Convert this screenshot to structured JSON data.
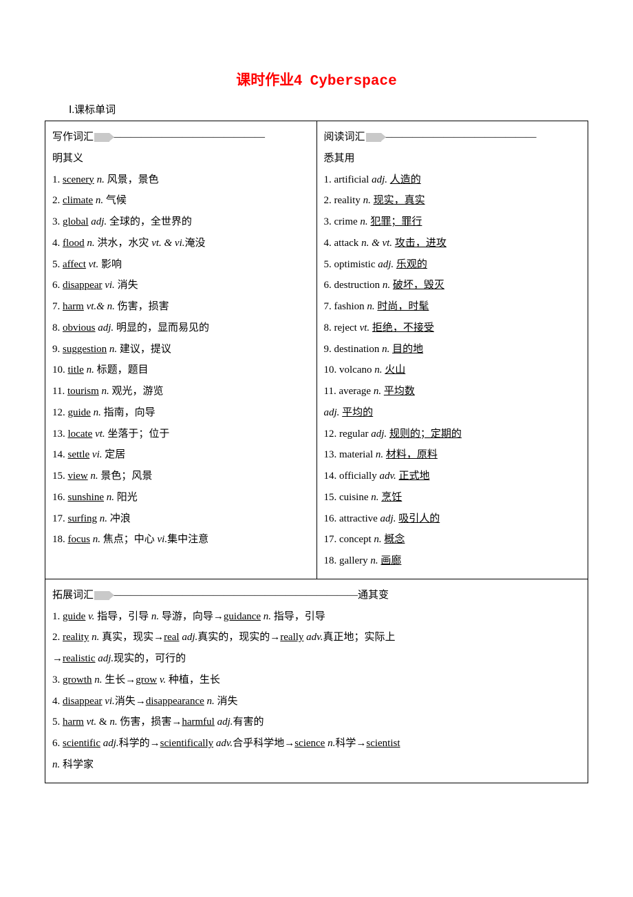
{
  "title_cn": "课时作业4",
  "title_en": "Cyberspace",
  "section_label": "Ⅰ.课标单词",
  "writing_header_prefix": "写作词汇",
  "writing_header_dashes": "———————————————",
  "writing_header_suffix": "明其义",
  "reading_header_prefix": "阅读词汇",
  "reading_header_dashes": "———————————————",
  "reading_header_suffix": "悉其用",
  "expand_header_prefix": "拓展词汇",
  "expand_header_dashes": "————————————————————————",
  "expand_header_suffix": "通其变",
  "writing": [
    {
      "num": "1",
      "word": "scenery",
      "pos": "n.",
      "def": "风景，景色"
    },
    {
      "num": "2",
      "word": "climate",
      "pos": "n.",
      "def": "气候"
    },
    {
      "num": "3",
      "word": "global",
      "pos": "adj.",
      "def": "全球的，全世界的"
    },
    {
      "num": "4",
      "word": "flood",
      "pos": "n.",
      "def": "洪水，水灾",
      "pos2": "vt. & vi.",
      "def2": "淹没"
    },
    {
      "num": "5",
      "word": "affect",
      "pos": "vt.",
      "def": "影响"
    },
    {
      "num": "6",
      "word": "disappear",
      "pos": "vi.",
      "def": "消失"
    },
    {
      "num": "7",
      "word": "harm",
      "pos": "vt.& n.",
      "def": "伤害，损害"
    },
    {
      "num": "8",
      "word": "obvious",
      "pos": "adj.",
      "def": "明显的，显而易见的"
    },
    {
      "num": "9",
      "word": "suggestion",
      "pos": "n.",
      "def": "建议，提议"
    },
    {
      "num": "10",
      "word": "title",
      "pos": "n.",
      "def": "标题，题目"
    },
    {
      "num": "11",
      "word": "tourism",
      "pos": "n.",
      "def": "观光，游览"
    },
    {
      "num": "12",
      "word": "guide",
      "pos": "n.",
      "def": "指南，向导"
    },
    {
      "num": "13",
      "word": "locate",
      "pos": "vt.",
      "def": "坐落于；位于"
    },
    {
      "num": "14",
      "word": "settle",
      "pos": "vi.",
      "def": "定居"
    },
    {
      "num": "15",
      "word": "view",
      "pos": "n.",
      "def": "景色；风景"
    },
    {
      "num": "16",
      "word": "sunshine",
      "pos": "n.",
      "def": "阳光"
    },
    {
      "num": "17",
      "word": "surfing",
      "pos": "n.",
      "def": "冲浪"
    },
    {
      "num": "18",
      "word": "focus",
      "pos": "n.",
      "def": "焦点；中心",
      "pos2": "vi.",
      "def2": "集中注意"
    }
  ],
  "reading": [
    {
      "num": "1",
      "word": "artificial",
      "pos": "adj.",
      "def": "人造的"
    },
    {
      "num": "2",
      "word": "reality",
      "pos": "n.",
      "def": "现实，真实"
    },
    {
      "num": "3",
      "word": "crime",
      "pos": "n.",
      "def": "犯罪；罪行"
    },
    {
      "num": "4",
      "word": "attack",
      "pos": "n. & vt.",
      "def": "攻击，进攻"
    },
    {
      "num": "5",
      "word": "optimistic",
      "pos": "adj.",
      "def": "乐观的"
    },
    {
      "num": "6",
      "word": "destruction",
      "pos": "n.",
      "def": "破坏，毁灭"
    },
    {
      "num": "7",
      "word": "fashion",
      "pos": "n.",
      "def": "时尚，时髦"
    },
    {
      "num": "8",
      "word": "reject",
      "pos": "vt.",
      "def": "拒绝，不接受"
    },
    {
      "num": "9",
      "word": "destination",
      "pos": "n.",
      "def": "目的地"
    },
    {
      "num": "10",
      "word": "volcano",
      "pos": "n.",
      "def": "火山"
    },
    {
      "num": "11",
      "word": "average",
      "pos": "n.",
      "def": "平均数",
      "pos_extra": "adj.",
      "def_extra": "平均的"
    },
    {
      "num": "12",
      "word": "regular",
      "pos": "adj.",
      "def": "规则的；定期的"
    },
    {
      "num": "13",
      "word": "material",
      "pos": "n.",
      "def": "材料，原料"
    },
    {
      "num": "14",
      "word": "officially",
      "pos": "adv.",
      "def": "正式地"
    },
    {
      "num": "15",
      "word": "cuisine",
      "pos": "n.",
      "def": "烹饪"
    },
    {
      "num": "16",
      "word": "attractive",
      "pos": "adj.",
      "def": "吸引人的"
    },
    {
      "num": "17",
      "word": "concept",
      "pos": "n.",
      "def": "概念"
    },
    {
      "num": "18",
      "word": "gallery",
      "pos": "n.",
      "def": "画廊"
    }
  ],
  "expand": [
    {
      "line": "1. <u>guide</u> <i>v.</i> 指导，引导 <i>n.</i> 导游，向导→<u>guidance</u> <i>n.</i> 指导，引导"
    },
    {
      "line": "2. <u>reality</u> <i>n.</i> 真实，现实→<u>real</u> <i>adj.</i>真实的，现实的→<u>really</u> <i>adv.</i>真正地；实际上"
    },
    {
      "line": "→<u>realistic</u> <i>adj.</i>现实的，可行的"
    },
    {
      "line": "3. <u>growth</u> <i>n.</i> 生长→<u>grow</u> <i>v.</i> 种植，生长"
    },
    {
      "line": "4. <u>disappear</u> <i>vi.</i>消失→<u>disappearance</u> <i>n.</i> 消失"
    },
    {
      "line": "5. <u>harm</u> <i>vt.</i> & <i>n.</i> 伤害，损害→<u>harmful</u> <i>adj.</i>有害的"
    },
    {
      "line": "6. <u>scientific</u> <i>adj.</i>科学的→<u>scientifically</u> <i>adv.</i>合乎科学地→<u>science</u> <i>n.</i>科学→<u>scientist</u>"
    },
    {
      "line": "<i>n.</i> 科学家"
    }
  ]
}
